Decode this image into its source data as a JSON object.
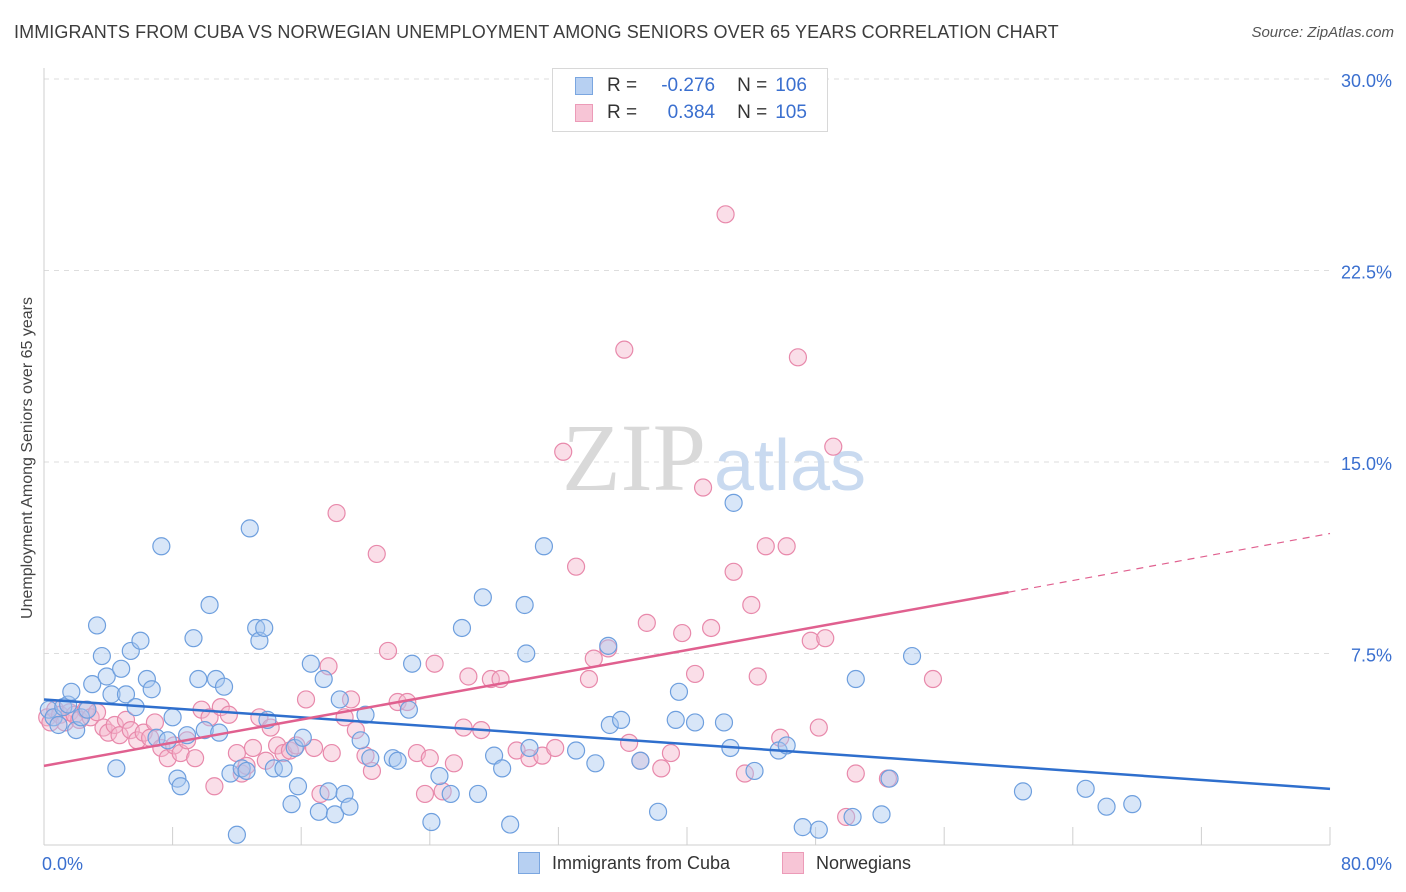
{
  "header": {
    "title": "IMMIGRANTS FROM CUBA VS NORWEGIAN UNEMPLOYMENT AMONG SENIORS OVER 65 YEARS CORRELATION CHART",
    "source": "Source: ZipAtlas.com"
  },
  "watermark": {
    "zip": "ZIP",
    "atlas": "atlas"
  },
  "legend": {
    "r_label": "R =",
    "n_label": "N =",
    "rows": [
      {
        "r": "-0.276",
        "n": "106"
      },
      {
        "r": "0.384",
        "n": "105"
      }
    ]
  },
  "bottom_legend": [
    {
      "label": "Immigrants from Cuba"
    },
    {
      "label": "Norwegians"
    }
  ],
  "chart_data": {
    "type": "scatter",
    "ylabel": "Unemployment Among Seniors over 65 years",
    "xlim": [
      0,
      80
    ],
    "ylim": [
      0,
      30
    ],
    "x_tick_labels": [
      "0.0%",
      "80.0%"
    ],
    "y_ticks": [
      7.5,
      15.0,
      22.5,
      30.0
    ],
    "y_tick_labels": [
      "7.5%",
      "15.0%",
      "22.5%",
      "30.0%"
    ],
    "grid": true,
    "legend_position": "top-center",
    "colors": {
      "cuba_fill": "#a9c8ef",
      "cuba_stroke": "#6e9fde",
      "cuba_line": "#2f6fcd",
      "nor_fill": "#f4b6cb",
      "nor_stroke": "#e889ab",
      "nor_line": "#e0608f",
      "grid": "#dddddd",
      "tick_label": "#3a6fcf"
    },
    "series": [
      {
        "name": "Immigrants from Cuba",
        "trend": {
          "x": [
            0,
            80
          ],
          "y": [
            5.7,
            2.2
          ]
        },
        "points": [
          [
            0.3,
            5.3
          ],
          [
            0.6,
            5.0
          ],
          [
            0.9,
            4.7
          ],
          [
            1.2,
            5.4
          ],
          [
            1.5,
            5.5
          ],
          [
            1.7,
            6.0
          ],
          [
            2.0,
            4.5
          ],
          [
            2.3,
            5.0
          ],
          [
            2.7,
            5.3
          ],
          [
            3.0,
            6.3
          ],
          [
            3.3,
            8.6
          ],
          [
            3.6,
            7.4
          ],
          [
            3.9,
            6.6
          ],
          [
            4.2,
            5.9
          ],
          [
            4.5,
            3.0
          ],
          [
            4.8,
            6.9
          ],
          [
            5.1,
            5.9
          ],
          [
            5.4,
            7.6
          ],
          [
            5.7,
            5.4
          ],
          [
            6.0,
            8.0
          ],
          [
            6.4,
            6.5
          ],
          [
            6.7,
            6.1
          ],
          [
            7.0,
            4.2
          ],
          [
            7.3,
            11.7
          ],
          [
            7.7,
            4.1
          ],
          [
            8.0,
            5.0
          ],
          [
            8.3,
            2.6
          ],
          [
            8.5,
            2.3
          ],
          [
            8.9,
            4.3
          ],
          [
            9.3,
            8.1
          ],
          [
            9.6,
            6.5
          ],
          [
            10.0,
            4.5
          ],
          [
            10.3,
            9.4
          ],
          [
            10.7,
            6.5
          ],
          [
            10.9,
            4.4
          ],
          [
            11.2,
            6.2
          ],
          [
            11.6,
            2.8
          ],
          [
            12.0,
            0.4
          ],
          [
            12.3,
            3.0
          ],
          [
            12.6,
            2.9
          ],
          [
            12.8,
            12.4
          ],
          [
            13.2,
            8.5
          ],
          [
            13.4,
            8.0
          ],
          [
            13.7,
            8.5
          ],
          [
            13.9,
            4.9
          ],
          [
            14.3,
            3.0
          ],
          [
            14.9,
            3.0
          ],
          [
            15.4,
            1.6
          ],
          [
            15.6,
            3.8
          ],
          [
            15.8,
            2.3
          ],
          [
            16.1,
            4.2
          ],
          [
            16.6,
            7.1
          ],
          [
            17.1,
            1.3
          ],
          [
            17.4,
            6.5
          ],
          [
            17.7,
            2.1
          ],
          [
            18.1,
            1.2
          ],
          [
            18.4,
            5.7
          ],
          [
            18.7,
            2.0
          ],
          [
            19.0,
            1.5
          ],
          [
            19.7,
            4.1
          ],
          [
            20.0,
            5.1
          ],
          [
            20.3,
            3.4
          ],
          [
            21.7,
            3.4
          ],
          [
            22.0,
            3.3
          ],
          [
            22.7,
            5.3
          ],
          [
            22.9,
            7.1
          ],
          [
            24.1,
            0.9
          ],
          [
            24.6,
            2.7
          ],
          [
            25.3,
            2.0
          ],
          [
            26.0,
            8.5
          ],
          [
            27.0,
            2.0
          ],
          [
            27.3,
            9.7
          ],
          [
            28.0,
            3.5
          ],
          [
            28.5,
            3.0
          ],
          [
            29.0,
            0.8
          ],
          [
            29.9,
            9.4
          ],
          [
            30.2,
            3.8
          ],
          [
            30.0,
            7.5
          ],
          [
            31.1,
            11.7
          ],
          [
            33.1,
            3.7
          ],
          [
            34.3,
            3.2
          ],
          [
            35.1,
            7.8
          ],
          [
            35.2,
            4.7
          ],
          [
            35.9,
            4.9
          ],
          [
            37.1,
            3.3
          ],
          [
            38.2,
            1.3
          ],
          [
            39.3,
            4.9
          ],
          [
            39.5,
            6.0
          ],
          [
            40.5,
            4.8
          ],
          [
            42.3,
            4.8
          ],
          [
            42.9,
            13.4
          ],
          [
            42.7,
            3.8
          ],
          [
            44.2,
            2.9
          ],
          [
            45.7,
            3.7
          ],
          [
            46.2,
            3.9
          ],
          [
            47.2,
            0.7
          ],
          [
            48.2,
            0.6
          ],
          [
            50.3,
            1.1
          ],
          [
            50.5,
            6.5
          ],
          [
            52.1,
            1.2
          ],
          [
            52.6,
            2.6
          ],
          [
            54.0,
            7.4
          ],
          [
            60.9,
            2.1
          ],
          [
            64.8,
            2.2
          ],
          [
            66.1,
            1.5
          ],
          [
            67.7,
            1.6
          ]
        ]
      },
      {
        "name": "Norwegians",
        "trend": {
          "x": [
            0,
            60
          ],
          "y": [
            3.1,
            9.9
          ]
        },
        "trend_extension": {
          "x": [
            60,
            80
          ],
          "y": [
            9.9,
            12.2
          ]
        },
        "points": [
          [
            0.2,
            5.0
          ],
          [
            0.4,
            4.8
          ],
          [
            0.7,
            5.3
          ],
          [
            1.0,
            5.1
          ],
          [
            1.3,
            4.8
          ],
          [
            1.6,
            5.2
          ],
          [
            1.9,
            5.1
          ],
          [
            2.2,
            4.9
          ],
          [
            2.6,
            5.3
          ],
          [
            2.9,
            5.0
          ],
          [
            3.3,
            5.2
          ],
          [
            3.7,
            4.6
          ],
          [
            4.0,
            4.4
          ],
          [
            4.4,
            4.7
          ],
          [
            4.7,
            4.3
          ],
          [
            5.1,
            4.9
          ],
          [
            5.4,
            4.5
          ],
          [
            5.8,
            4.1
          ],
          [
            6.2,
            4.4
          ],
          [
            6.6,
            4.2
          ],
          [
            6.9,
            4.8
          ],
          [
            7.3,
            3.8
          ],
          [
            7.7,
            3.4
          ],
          [
            8.1,
            3.9
          ],
          [
            8.5,
            3.6
          ],
          [
            8.9,
            4.1
          ],
          [
            9.4,
            3.4
          ],
          [
            9.8,
            5.3
          ],
          [
            10.3,
            5.0
          ],
          [
            10.6,
            2.3
          ],
          [
            11.0,
            5.4
          ],
          [
            11.5,
            5.1
          ],
          [
            12.0,
            3.6
          ],
          [
            12.3,
            2.8
          ],
          [
            12.6,
            3.1
          ],
          [
            13.0,
            3.8
          ],
          [
            13.4,
            5.0
          ],
          [
            13.8,
            3.3
          ],
          [
            14.1,
            4.6
          ],
          [
            14.5,
            3.9
          ],
          [
            14.9,
            3.6
          ],
          [
            15.3,
            3.7
          ],
          [
            15.7,
            3.9
          ],
          [
            16.3,
            5.7
          ],
          [
            16.8,
            3.8
          ],
          [
            17.2,
            2.0
          ],
          [
            17.7,
            7.0
          ],
          [
            17.9,
            3.6
          ],
          [
            18.2,
            13.0
          ],
          [
            18.7,
            5.0
          ],
          [
            19.1,
            5.7
          ],
          [
            19.4,
            4.5
          ],
          [
            20.0,
            3.5
          ],
          [
            20.4,
            2.9
          ],
          [
            20.7,
            11.4
          ],
          [
            21.4,
            7.6
          ],
          [
            22.0,
            5.6
          ],
          [
            22.6,
            5.6
          ],
          [
            23.2,
            3.6
          ],
          [
            23.7,
            2.0
          ],
          [
            24.0,
            3.4
          ],
          [
            24.3,
            7.1
          ],
          [
            24.8,
            2.1
          ],
          [
            25.5,
            3.2
          ],
          [
            26.1,
            4.6
          ],
          [
            26.4,
            6.6
          ],
          [
            27.2,
            4.5
          ],
          [
            27.8,
            6.5
          ],
          [
            28.4,
            6.5
          ],
          [
            29.4,
            3.7
          ],
          [
            30.2,
            3.4
          ],
          [
            31.0,
            3.5
          ],
          [
            31.8,
            3.8
          ],
          [
            32.3,
            15.4
          ],
          [
            33.1,
            10.9
          ],
          [
            33.9,
            6.5
          ],
          [
            34.2,
            7.3
          ],
          [
            35.1,
            7.7
          ],
          [
            36.1,
            19.4
          ],
          [
            36.4,
            4.0
          ],
          [
            37.1,
            3.3
          ],
          [
            37.5,
            8.7
          ],
          [
            38.4,
            3.0
          ],
          [
            39.0,
            3.6
          ],
          [
            39.7,
            8.3
          ],
          [
            40.5,
            6.7
          ],
          [
            41.0,
            14.0
          ],
          [
            41.5,
            8.5
          ],
          [
            42.4,
            24.7
          ],
          [
            42.9,
            10.7
          ],
          [
            43.6,
            2.8
          ],
          [
            44.0,
            9.4
          ],
          [
            44.4,
            6.6
          ],
          [
            44.9,
            11.7
          ],
          [
            45.8,
            4.2
          ],
          [
            46.2,
            11.7
          ],
          [
            46.9,
            19.1
          ],
          [
            47.7,
            8.0
          ],
          [
            48.2,
            4.6
          ],
          [
            48.6,
            8.1
          ],
          [
            49.1,
            15.6
          ],
          [
            49.9,
            1.1
          ],
          [
            50.5,
            2.8
          ],
          [
            52.5,
            2.6
          ],
          [
            55.3,
            6.5
          ]
        ]
      }
    ]
  }
}
